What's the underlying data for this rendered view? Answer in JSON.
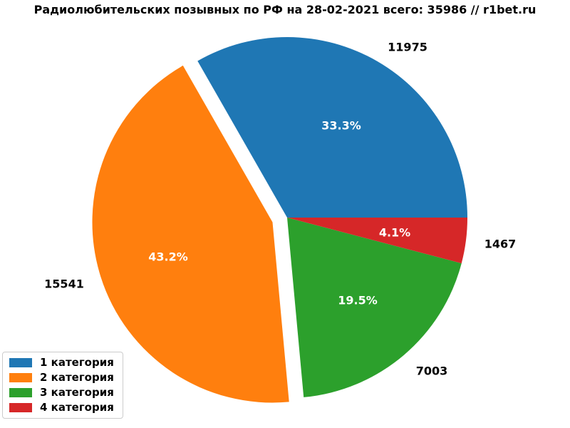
{
  "title": "Радиолюбительских позывных по РФ на 28-02-2021 всего: 35986 // r1bet.ru",
  "chart_data": {
    "type": "pie",
    "title": "Радиолюбительских позывных по РФ на 28-02-2021 всего: 35986 // r1bet.ru",
    "total": 35986,
    "start_angle": 0,
    "direction": "counterclockwise",
    "legend_position": "lower-left",
    "grid": false,
    "slices": [
      {
        "key": "category-1",
        "label": "1 категория",
        "value": 11975,
        "value_label": "11975",
        "pct": 33.3,
        "pct_label": "33.3%",
        "color": "#1f77b4",
        "explode": 0
      },
      {
        "key": "category-2",
        "label": "2 категория",
        "value": 15541,
        "value_label": "15541",
        "pct": 43.2,
        "pct_label": "43.2%",
        "color": "#ff7f0e",
        "explode": 0.085
      },
      {
        "key": "category-3",
        "label": "3 категория",
        "value": 7003,
        "value_label": "7003",
        "pct": 19.5,
        "pct_label": "19.5%",
        "color": "#2ca02c",
        "explode": 0
      },
      {
        "key": "category-4",
        "label": "4 категория",
        "value": 1467,
        "value_label": "1467",
        "pct": 4.1,
        "pct_label": "4.1%",
        "color": "#d62728",
        "explode": 0
      }
    ]
  }
}
